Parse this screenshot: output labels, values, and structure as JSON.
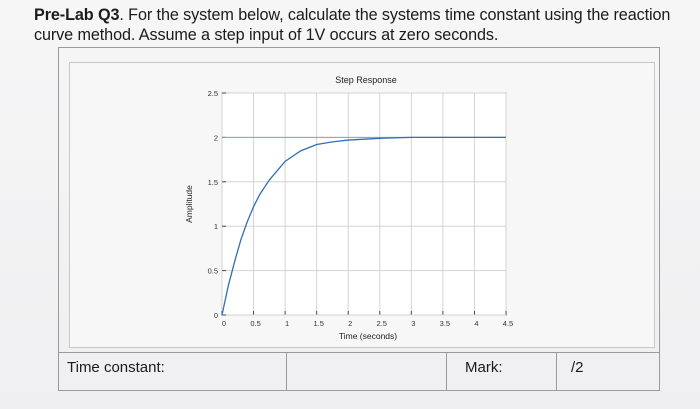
{
  "question": {
    "prefix": "Pre-Lab Q3",
    "text": ". For the system below, calculate the systems time constant using the reaction curve method. Assume a step input of 1V occurs at zero seconds."
  },
  "answer_row": {
    "time_constant_label": "Time constant:",
    "time_constant_value": "",
    "mark_label": "Mark:",
    "mark_value": "/2"
  },
  "chart_data": {
    "type": "line",
    "title": "Step Response",
    "xlabel": "Time (seconds)",
    "ylabel": "Amplitude",
    "xlim": [
      0,
      4.5
    ],
    "ylim": [
      0,
      2.5
    ],
    "xticks": [
      "0",
      "0.5",
      "1",
      "1.5",
      "2",
      "2.5",
      "3",
      "3.5",
      "4",
      "4.5"
    ],
    "yticks": [
      "0",
      "0.5",
      "1",
      "1.5",
      "2",
      "2.5"
    ],
    "grid": true,
    "steady_state": 2,
    "series": [
      {
        "x": [
          0,
          0.1,
          0.2,
          0.3,
          0.4,
          0.5,
          0.6,
          0.75,
          1.0,
          1.25,
          1.5,
          1.75,
          2.0,
          2.5,
          3.0,
          3.5,
          4.0,
          4.5
        ],
        "values": [
          0,
          0.33,
          0.6,
          0.85,
          1.05,
          1.22,
          1.36,
          1.52,
          1.73,
          1.85,
          1.92,
          1.95,
          1.97,
          1.99,
          2.0,
          2.0,
          2.0,
          2.0
        ]
      }
    ]
  }
}
